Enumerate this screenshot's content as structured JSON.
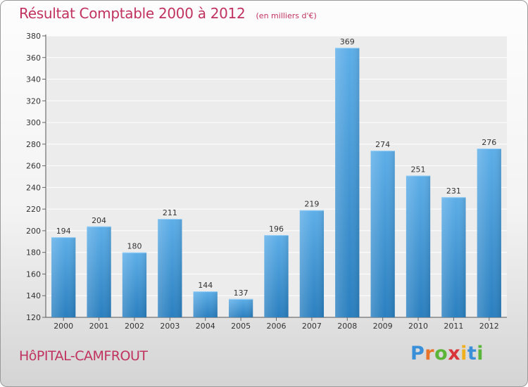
{
  "header": {
    "title": "Résultat Comptable 2000 à 2012",
    "subtitle": "(en milliers d'€)"
  },
  "footer": {
    "commune": "HôPITAL-CAMFROUT",
    "logo": "Proxiti"
  },
  "colors": {
    "title": "#c0325f",
    "bar_top": "#5daee8",
    "bar_bottom": "#2a7fbf",
    "logo": [
      "#3a8fd9",
      "#e8742c",
      "#5bb539",
      "#d9343a",
      "#f0b020",
      "#3a8fd9",
      "#5bb539"
    ]
  },
  "chart_data": {
    "type": "bar",
    "title": "Résultat Comptable 2000 à 2012",
    "subtitle": "(en milliers d'€)",
    "xlabel": "",
    "ylabel": "",
    "categories": [
      "2000",
      "2001",
      "2002",
      "2003",
      "2004",
      "2005",
      "2006",
      "2007",
      "2008",
      "2009",
      "2010",
      "2011",
      "2012"
    ],
    "values": [
      194,
      204,
      180,
      211,
      144,
      137,
      196,
      219,
      369,
      274,
      251,
      231,
      276
    ],
    "ylim": [
      120,
      380
    ],
    "yticks": [
      120,
      140,
      160,
      180,
      200,
      220,
      240,
      260,
      280,
      300,
      320,
      340,
      360,
      380
    ],
    "grid": true,
    "data_labels": true
  }
}
